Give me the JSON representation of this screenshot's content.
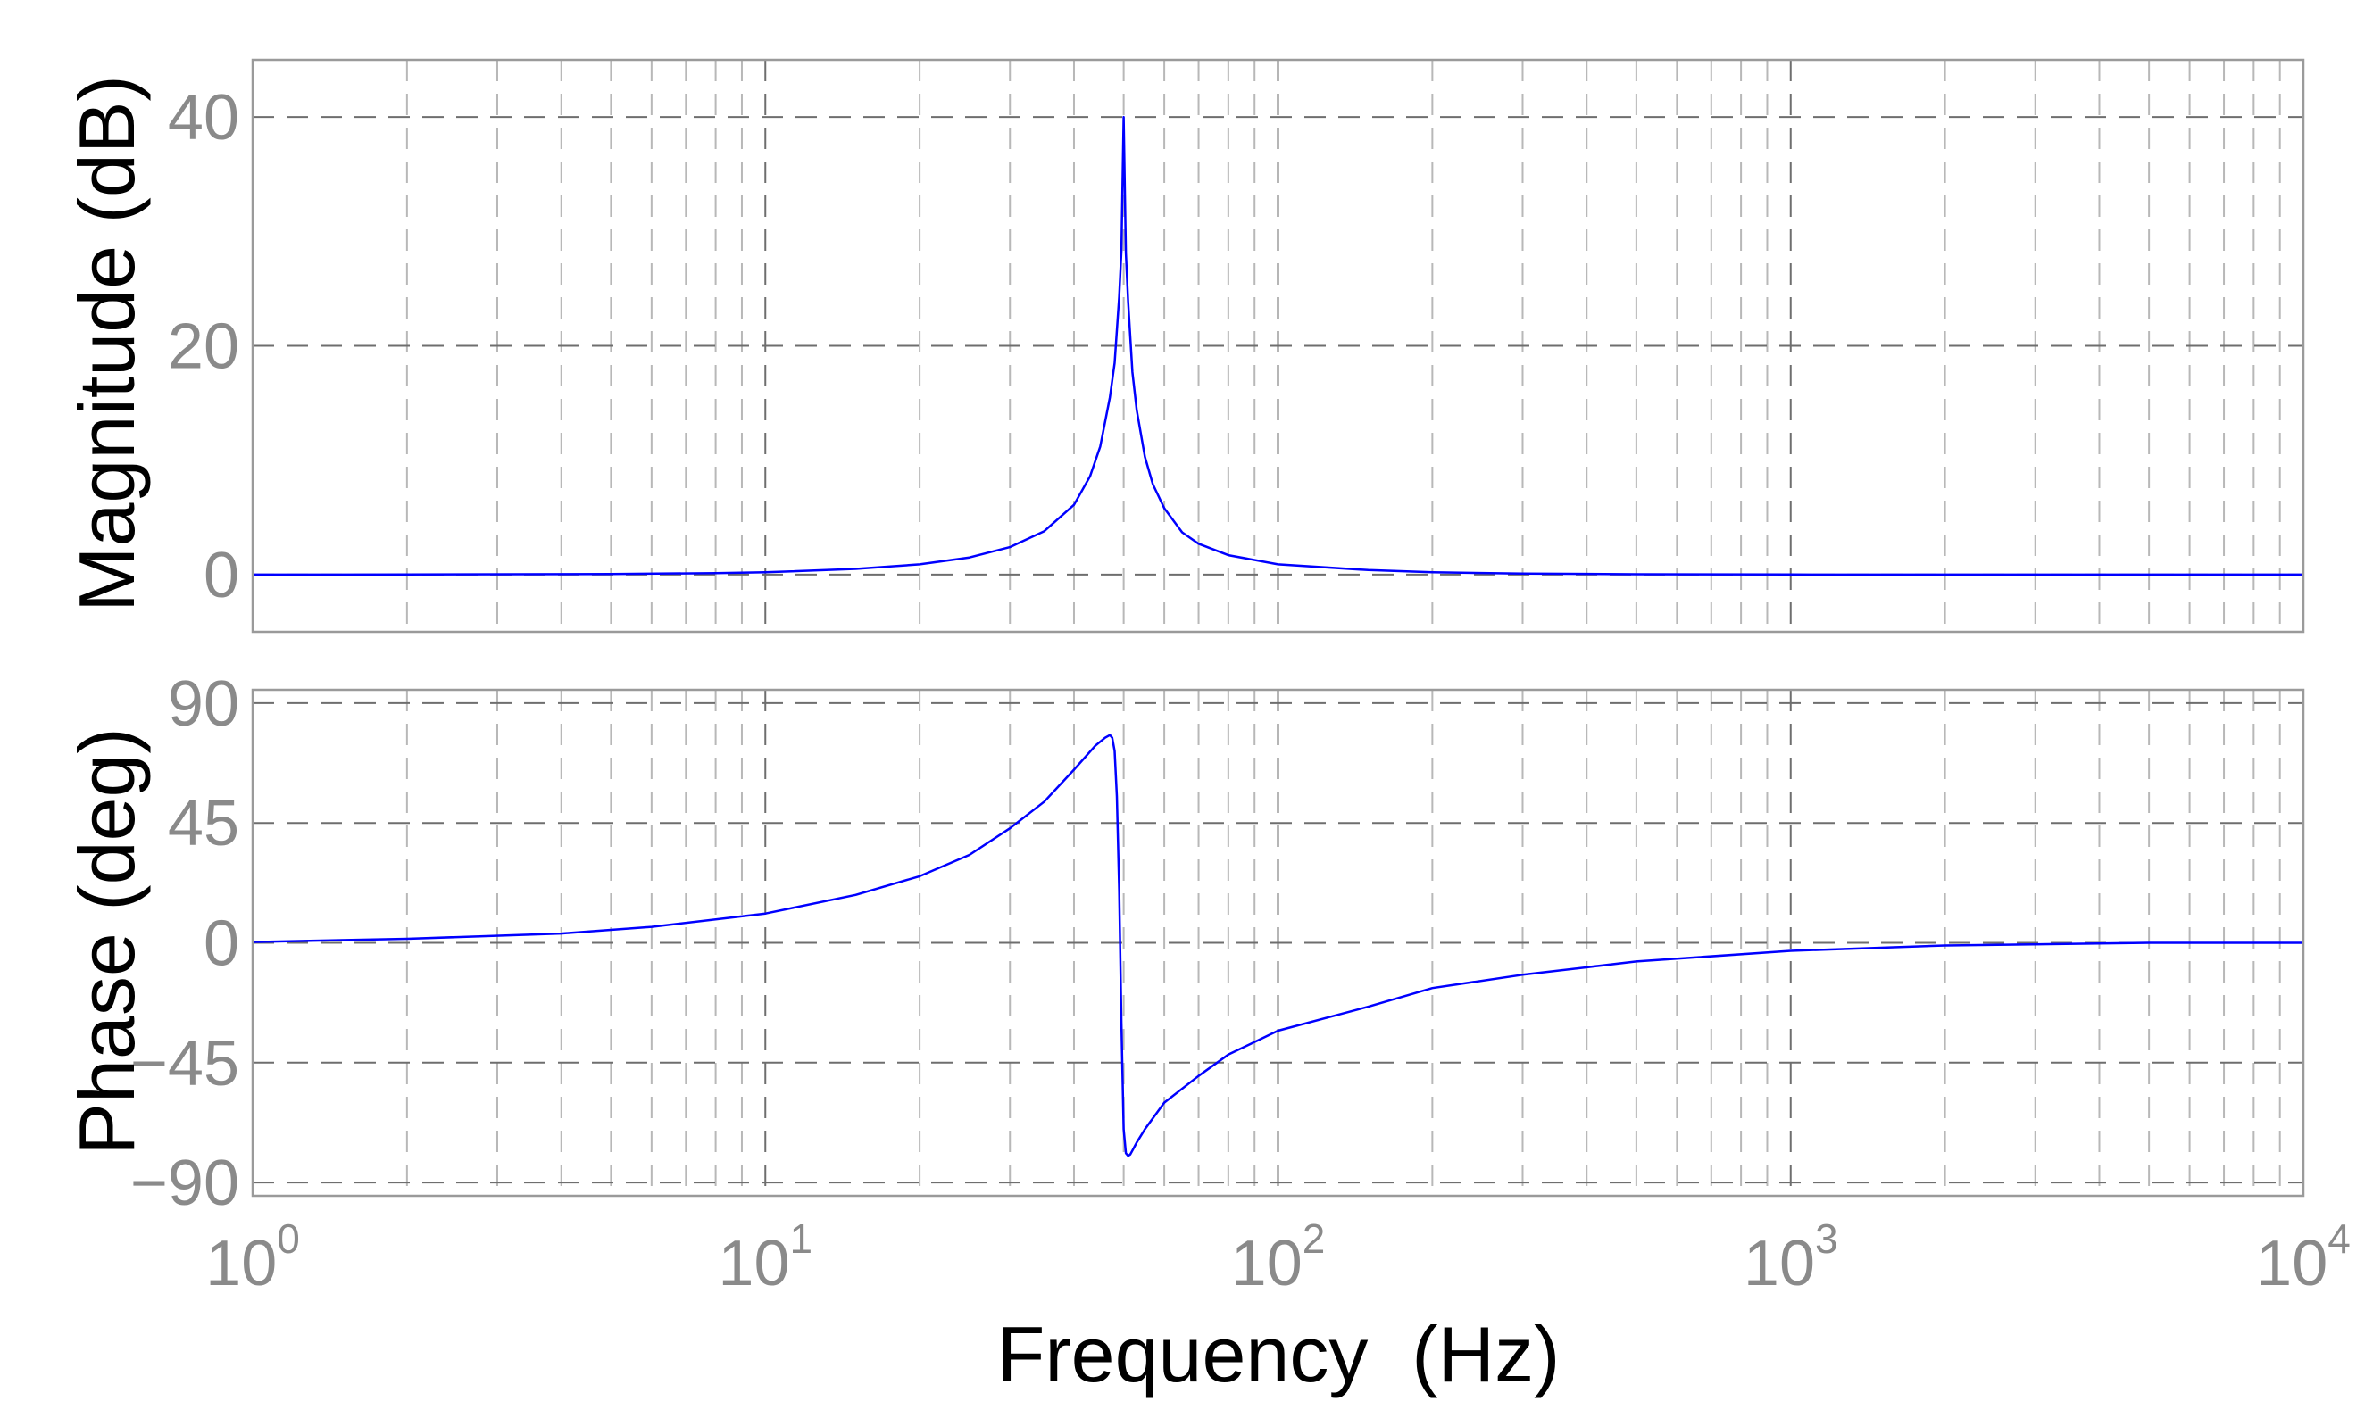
{
  "chart_data": [
    {
      "type": "line",
      "panel": "magnitude",
      "title": "",
      "xlabel": "",
      "ylabel": "Magnitude (dB)",
      "xscale": "log",
      "xlim": [
        1,
        10000
      ],
      "ylim": [
        -5,
        45
      ],
      "y_ticks": [
        0,
        20,
        40
      ],
      "y_tick_labels": [
        "0",
        "20",
        "40"
      ],
      "grid": true,
      "series": [
        {
          "color": "#0000ff",
          "x": [
            1,
            2,
            5,
            8,
            10,
            15,
            20,
            25,
            30,
            35,
            40,
            43,
            45,
            47,
            48,
            49,
            49.5,
            50,
            50.5,
            51,
            52,
            53,
            55,
            57,
            60,
            65,
            70,
            80,
            100,
            150,
            200,
            300,
            500,
            1000,
            2000,
            5000,
            10000
          ],
          "y": [
            0.0,
            0.01,
            0.05,
            0.13,
            0.2,
            0.5,
            0.9,
            1.5,
            2.4,
            3.8,
            6.1,
            8.6,
            11.2,
            15.5,
            18.5,
            24.3,
            28.3,
            40.0,
            28.1,
            23.9,
            17.7,
            14.4,
            10.3,
            7.9,
            5.8,
            3.7,
            2.7,
            1.7,
            0.9,
            0.4,
            0.2,
            0.09,
            0.03,
            0.01,
            0.0,
            0.0,
            0.0
          ]
        }
      ]
    },
    {
      "type": "line",
      "panel": "phase",
      "title": "",
      "xlabel": "Frequency  (Hz)",
      "ylabel": "Phase (deg)",
      "xscale": "log",
      "xlim": [
        1,
        10000
      ],
      "ylim": [
        -95,
        95
      ],
      "y_ticks": [
        -90,
        -45,
        0,
        45,
        90
      ],
      "y_tick_labels": [
        "−90",
        "−45",
        "0",
        "45",
        "90"
      ],
      "x_ticks": [
        1,
        10,
        100,
        1000,
        10000
      ],
      "x_tick_labels": [
        {
          "base": "10",
          "exp": "0"
        },
        {
          "base": "10",
          "exp": "1"
        },
        {
          "base": "10",
          "exp": "2"
        },
        {
          "base": "10",
          "exp": "3"
        },
        {
          "base": "10",
          "exp": "4"
        }
      ],
      "grid": true,
      "series": [
        {
          "color": "#0000ff",
          "x": [
            1,
            2,
            4,
            6,
            10,
            15,
            20,
            25,
            30,
            35,
            40,
            44,
            46,
            47,
            47.5,
            48,
            48.5,
            49,
            49.5,
            50,
            50.5,
            51,
            51.5,
            52,
            53,
            55,
            60,
            70,
            80,
            100,
            150,
            200,
            300,
            500,
            1000,
            2000,
            5000,
            10000
          ],
          "y": [
            0.3,
            1.5,
            3.5,
            6,
            11,
            18,
            25,
            33,
            43,
            53,
            65,
            74,
            77,
            78,
            77,
            72,
            55,
            20,
            -30,
            -70,
            -79,
            -80,
            -79.5,
            -78,
            -75,
            -70,
            -60,
            -50,
            -42,
            -33,
            -24,
            -17,
            -12,
            -7,
            -3,
            -1,
            0,
            0
          ]
        }
      ]
    }
  ]
}
